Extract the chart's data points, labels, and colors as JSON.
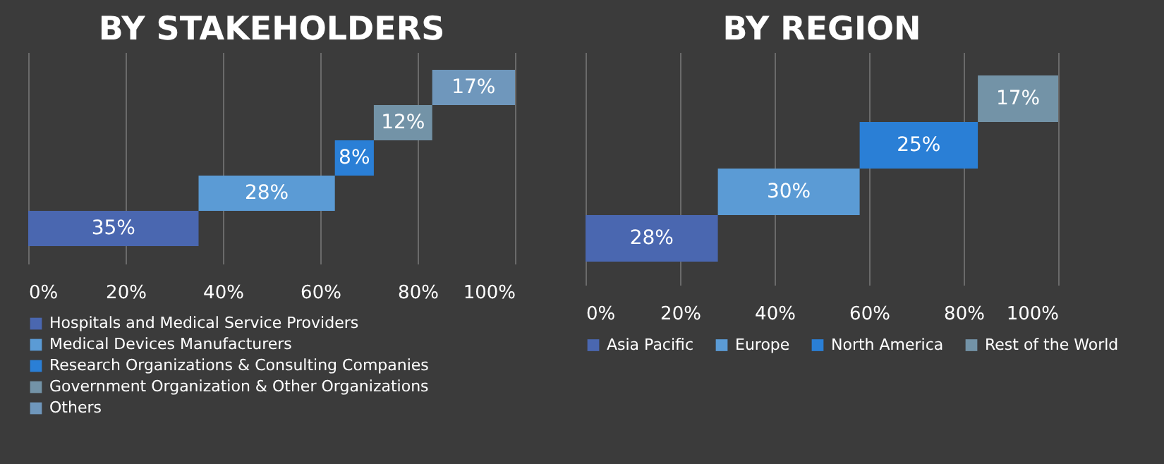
{
  "chart_data": [
    {
      "type": "bar",
      "title": "BY STAKEHOLDERS",
      "orientation": "horizontal",
      "categories": [
        null,
        null,
        null,
        null,
        null
      ],
      "xlim": [
        0,
        100
      ],
      "xticks": [
        {
          "value": 0,
          "label": "0%"
        },
        {
          "value": 20,
          "label": "20%"
        },
        {
          "value": 40,
          "label": "40%"
        },
        {
          "value": 60,
          "label": "60%"
        },
        {
          "value": 80,
          "label": "80%"
        },
        {
          "value": 100,
          "label": "100%"
        }
      ],
      "grid": "x",
      "legend": "bottom",
      "series": [
        {
          "name": "Hospitals and Medical Service Providers",
          "color": "#4a67b0",
          "values": [
            null,
            null,
            null,
            null,
            35
          ],
          "base": [
            null,
            null,
            null,
            null,
            0
          ],
          "value_labels": [
            null,
            null,
            null,
            null,
            "35%"
          ]
        },
        {
          "name": "Medical Devices Manufacturers",
          "color": "#5b9bd5",
          "values": [
            null,
            null,
            null,
            28,
            null
          ],
          "base": [
            null,
            null,
            null,
            35,
            null
          ],
          "value_labels": [
            null,
            null,
            null,
            "28%",
            null
          ]
        },
        {
          "name": "Research Organizations & Consulting Companies",
          "color": "#2a7fd6",
          "values": [
            null,
            null,
            8,
            null,
            null
          ],
          "base": [
            null,
            null,
            63,
            null,
            null
          ],
          "value_labels": [
            null,
            null,
            "8%",
            null,
            null
          ]
        },
        {
          "name": "Government Organization & Other Organizations",
          "color": "#7393a7",
          "values": [
            null,
            12,
            null,
            null,
            null
          ],
          "base": [
            null,
            71,
            null,
            null,
            null
          ],
          "value_labels": [
            null,
            "12%",
            null,
            null,
            null
          ]
        },
        {
          "name": "Others",
          "color": "#6f97bc",
          "values": [
            17,
            null,
            null,
            null,
            null
          ],
          "base": [
            83,
            null,
            null,
            null,
            null
          ],
          "value_labels": [
            "17%",
            null,
            null,
            null,
            null
          ]
        }
      ]
    },
    {
      "type": "bar",
      "title": "BY REGION",
      "orientation": "horizontal",
      "categories": [
        null,
        null,
        null,
        null
      ],
      "xlim": [
        0,
        100
      ],
      "xticks": [
        {
          "value": 0,
          "label": "0%"
        },
        {
          "value": 20,
          "label": "20%"
        },
        {
          "value": 40,
          "label": "40%"
        },
        {
          "value": 60,
          "label": "60%"
        },
        {
          "value": 80,
          "label": "80%"
        },
        {
          "value": 100,
          "label": "100%"
        }
      ],
      "grid": "x",
      "legend": "bottom",
      "series": [
        {
          "name": "Asia Pacific",
          "color": "#4a67b0",
          "values": [
            null,
            null,
            null,
            28
          ],
          "base": [
            null,
            null,
            null,
            0
          ],
          "value_labels": [
            null,
            null,
            null,
            "28%"
          ]
        },
        {
          "name": "Europe",
          "color": "#5b9bd5",
          "values": [
            null,
            null,
            30,
            null
          ],
          "base": [
            null,
            null,
            28,
            null
          ],
          "value_labels": [
            null,
            null,
            "30%",
            null
          ]
        },
        {
          "name": "North America",
          "color": "#2a7fd6",
          "values": [
            null,
            25,
            null,
            null
          ],
          "base": [
            null,
            58,
            null,
            null
          ],
          "value_labels": [
            null,
            "25%",
            null,
            null
          ]
        },
        {
          "name": "Rest of the World",
          "color": "#7393a7",
          "values": [
            17,
            null,
            null,
            null
          ],
          "base": [
            83,
            null,
            null,
            null
          ],
          "value_labels": [
            "17%",
            null,
            null,
            null
          ]
        }
      ]
    }
  ]
}
